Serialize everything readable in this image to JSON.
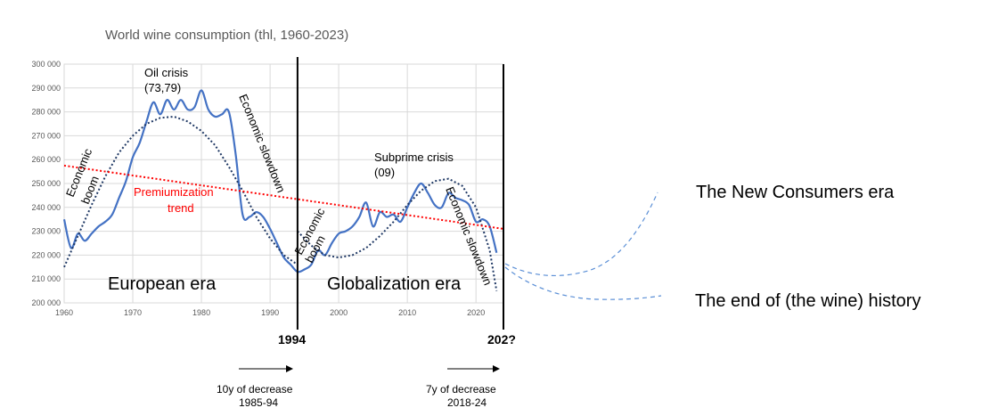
{
  "chart_data": {
    "type": "line",
    "title": "World wine consumption (thl, 1960-2023)",
    "xlim": [
      1960,
      2024
    ],
    "ylim": [
      200000,
      300000
    ],
    "x_ticks": [
      "1960",
      "1970",
      "1980",
      "1990",
      "2000",
      "2010",
      "2020"
    ],
    "y_ticks": [
      "200 000",
      "210 000",
      "220 000",
      "230 000",
      "240 000",
      "250 000",
      "260 000",
      "270 000",
      "280 000",
      "290 000",
      "300 000"
    ],
    "grid": true,
    "series": [
      {
        "role": "consumption",
        "color": "#4472c4",
        "style": "solid",
        "x": [
          1960,
          1961,
          1962,
          1963,
          1964,
          1965,
          1966,
          1967,
          1968,
          1969,
          1970,
          1971,
          1972,
          1973,
          1974,
          1975,
          1976,
          1977,
          1978,
          1979,
          1980,
          1981,
          1982,
          1983,
          1984,
          1985,
          1986,
          1987,
          1988,
          1989,
          1990,
          1991,
          1992,
          1993,
          1994,
          1995,
          1996,
          1997,
          1998,
          1999,
          2000,
          2001,
          2002,
          2003,
          2004,
          2005,
          2006,
          2007,
          2008,
          2009,
          2010,
          2011,
          2012,
          2013,
          2014,
          2015,
          2016,
          2017,
          2018,
          2019,
          2020,
          2021,
          2022,
          2023
        ],
        "y": [
          235000,
          223000,
          229000,
          226000,
          229000,
          232000,
          234000,
          237000,
          244000,
          251000,
          261000,
          267000,
          276000,
          284000,
          279000,
          285000,
          281000,
          285000,
          281000,
          282000,
          289000,
          281000,
          278000,
          279000,
          280000,
          262000,
          237000,
          236000,
          238000,
          236000,
          231000,
          225000,
          219000,
          216000,
          213000,
          214000,
          216000,
          222000,
          220000,
          225000,
          229000,
          230000,
          232000,
          236000,
          242000,
          232000,
          238000,
          236000,
          237000,
          234000,
          240000,
          246000,
          250000,
          246000,
          241000,
          240000,
          246000,
          244000,
          243000,
          241000,
          234000,
          235000,
          232000,
          221000
        ]
      },
      {
        "role": "polynomial-trend-1",
        "color": "#1f3864",
        "style": "dotted",
        "x": [
          1960,
          1962,
          1964,
          1966,
          1968,
          1970,
          1972,
          1974,
          1976,
          1978,
          1980,
          1982,
          1984,
          1986,
          1988,
          1990,
          1992,
          1994
        ],
        "y": [
          215000,
          228000,
          241000,
          253000,
          263000,
          270000,
          275000,
          277500,
          278000,
          276000,
          272000,
          266000,
          257000,
          247000,
          236000,
          227000,
          220000,
          216000
        ]
      },
      {
        "role": "polynomial-trend-2",
        "color": "#1f3864",
        "style": "dotted",
        "x": [
          1994,
          1996,
          1998,
          2000,
          2002,
          2004,
          2006,
          2008,
          2010,
          2012,
          2014,
          2016,
          2018,
          2020,
          2022,
          2023
        ],
        "y": [
          230000,
          224000,
          220000,
          219000,
          220000,
          223000,
          228000,
          234000,
          241000,
          247000,
          251000,
          252000,
          249000,
          240000,
          222000,
          205000
        ]
      },
      {
        "role": "premiumization-trend",
        "color": "#ff0000",
        "style": "dotted",
        "x": [
          1960,
          2024
        ],
        "y": [
          257500,
          231000
        ]
      }
    ],
    "vertical_markers": [
      {
        "x": 1994,
        "label": "1994"
      },
      {
        "x": 2024,
        "label": "202?"
      }
    ],
    "annotations": {
      "oil_crisis_1": "Oil crisis",
      "oil_crisis_2": "(73,79)",
      "subprime_1": "Subprime crisis",
      "subprime_2": "(09)",
      "economic": "Economic",
      "boom": "boom",
      "economic_slowdown": "Economic slowdown",
      "premiumization_1": "Premiumization",
      "premiumization_2": "trend",
      "european_era": "European era",
      "globalization_era": "Globalization era",
      "new_consumers_era": "The New Consumers era",
      "end_of_history": "The end of (the wine) history",
      "decrease_1_a": "10y of decrease",
      "decrease_1_b": "1985-94",
      "decrease_2_a": "7y of decrease",
      "decrease_2_b": "2018-24"
    }
  }
}
